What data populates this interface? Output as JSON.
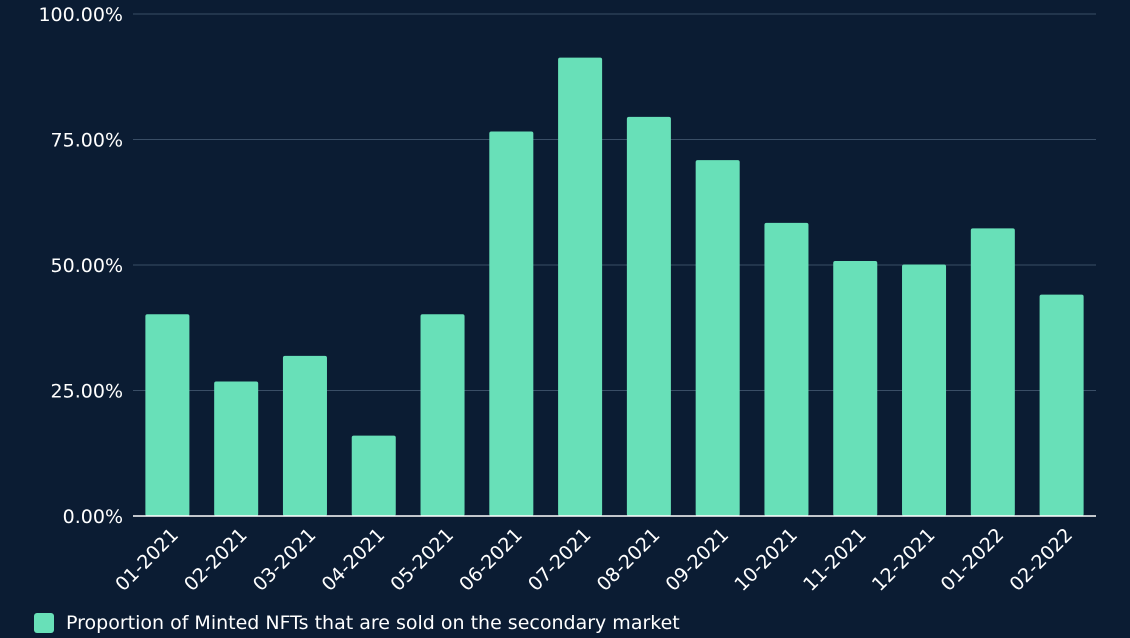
{
  "colors": {
    "background": "#0b1c33",
    "bar": "#68e0b8",
    "grid": "#3a4e66",
    "axis": "#ffffff",
    "text": "#ffffff"
  },
  "chart_data": {
    "type": "bar",
    "categories": [
      "01-2021",
      "02-2021",
      "03-2021",
      "04-2021",
      "05-2021",
      "06-2021",
      "07-2021",
      "08-2021",
      "09-2021",
      "10-2021",
      "11-2021",
      "12-2021",
      "01-2022",
      "02-2022"
    ],
    "series": [
      {
        "name": "Proportion of Minted NFTs that are sold on the secondary market",
        "values": [
          40.2,
          26.8,
          31.9,
          16.0,
          40.2,
          76.6,
          91.3,
          79.5,
          70.9,
          58.4,
          50.8,
          50.1,
          57.3,
          44.1
        ]
      }
    ],
    "ylim": [
      0,
      100
    ],
    "yticks": [
      0,
      25,
      50,
      75,
      100
    ],
    "ytick_labels": [
      "0.00%",
      "25.00%",
      "50.00%",
      "75.00%",
      "100.00%"
    ],
    "grid": true,
    "legend_position": "bottom-left",
    "title": "",
    "xlabel": "",
    "ylabel": ""
  }
}
